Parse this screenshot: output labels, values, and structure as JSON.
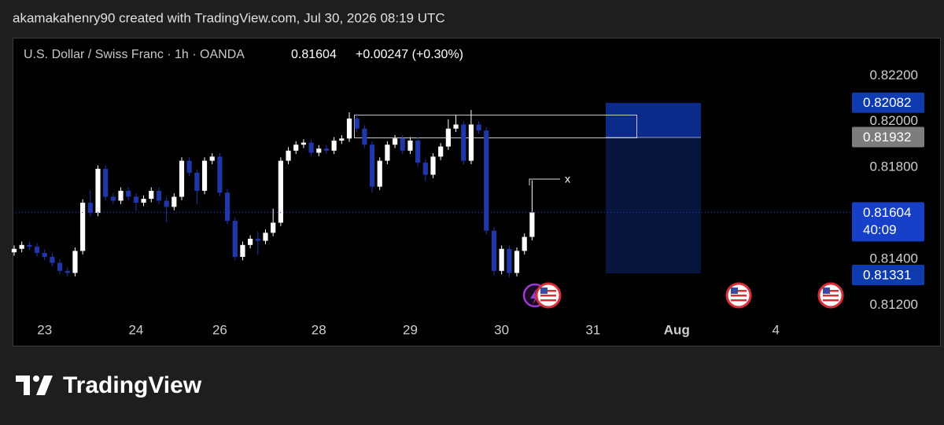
{
  "header": {
    "attribution": "akamakahenry90 created with TradingView.com, Jul 30, 2026 08:19 UTC"
  },
  "footer": {
    "brand": "TradingView"
  },
  "chart_data": {
    "type": "candlestick",
    "title": "U.S. Dollar / Swiss Franc · 1h · OANDA",
    "last_price": 0.81604,
    "change_label": "+0.00247 (+0.30%)",
    "marker_label": "x",
    "up_color": "#ffffff",
    "down_color": "#2137a8",
    "xlim": [
      0,
      110
    ],
    "xticks": [
      {
        "value": 4,
        "label": "23"
      },
      {
        "value": 16,
        "label": "24"
      },
      {
        "value": 27,
        "label": "26"
      },
      {
        "value": 40,
        "label": "28"
      },
      {
        "value": 52,
        "label": "29"
      },
      {
        "value": 64,
        "label": "30"
      },
      {
        "value": 76,
        "label": "31"
      },
      {
        "value": 87,
        "label": "Aug"
      },
      {
        "value": 100,
        "label": "4"
      }
    ],
    "ylim": [
      0.8116,
      0.8229
    ],
    "yticks": [
      {
        "value": 0.812,
        "label": "0.81200"
      },
      {
        "value": 0.814,
        "label": "0.81400"
      },
      {
        "value": 0.818,
        "label": "0.81800"
      },
      {
        "value": 0.82,
        "label": "0.82000"
      },
      {
        "value": 0.822,
        "label": "0.82200"
      }
    ],
    "price_labels": [
      {
        "value": 0.82082,
        "label": "0.82082",
        "color": "#0f3bb0"
      },
      {
        "value": 0.81932,
        "label": "0.81932",
        "color": "#7d7d7d"
      },
      {
        "value": 0.81604,
        "label": "0.81604",
        "sublabel": "40:09",
        "color": "#1640c8"
      },
      {
        "value": 0.81331,
        "label": "0.81331",
        "color": "#0f3bb0"
      }
    ],
    "candles": [
      [
        0.8143,
        0.8146,
        0.81415,
        0.81445
      ],
      [
        0.81445,
        0.81477,
        0.8143,
        0.81462
      ],
      [
        0.81462,
        0.81477,
        0.81439,
        0.81454
      ],
      [
        0.81454,
        0.81469,
        0.81412,
        0.81427
      ],
      [
        0.81427,
        0.81442,
        0.81395,
        0.8141
      ],
      [
        0.8141,
        0.81425,
        0.81369,
        0.81384
      ],
      [
        0.81384,
        0.81399,
        0.81334,
        0.81349
      ],
      [
        0.81349,
        0.81364,
        0.81325,
        0.8134
      ],
      [
        0.8134,
        0.81451,
        0.81325,
        0.81436
      ],
      [
        0.81436,
        0.81661,
        0.81421,
        0.81646
      ],
      [
        0.81646,
        0.817,
        0.81587,
        0.81602
      ],
      [
        0.81602,
        0.81809,
        0.81587,
        0.81794
      ],
      [
        0.81794,
        0.81809,
        0.81657,
        0.81672
      ],
      [
        0.81672,
        0.81687,
        0.8164,
        0.81655
      ],
      [
        0.81655,
        0.81713,
        0.8164,
        0.81698
      ],
      [
        0.81698,
        0.81713,
        0.81657,
        0.81672
      ],
      [
        0.81672,
        0.81687,
        0.8161,
        0.81646
      ],
      [
        0.81646,
        0.81678,
        0.81631,
        0.81663
      ],
      [
        0.81663,
        0.81713,
        0.81648,
        0.81698
      ],
      [
        0.81698,
        0.81713,
        0.8164,
        0.81655
      ],
      [
        0.81655,
        0.8167,
        0.8156,
        0.81628
      ],
      [
        0.81628,
        0.81687,
        0.81613,
        0.81672
      ],
      [
        0.81672,
        0.81844,
        0.81657,
        0.81829
      ],
      [
        0.81829,
        0.81844,
        0.81762,
        0.81777
      ],
      [
        0.81777,
        0.81792,
        0.8164,
        0.81698
      ],
      [
        0.81698,
        0.81844,
        0.81683,
        0.81829
      ],
      [
        0.81829,
        0.81862,
        0.81814,
        0.81847
      ],
      [
        0.81847,
        0.81862,
        0.81675,
        0.8169
      ],
      [
        0.8169,
        0.81705,
        0.81552,
        0.81567
      ],
      [
        0.81567,
        0.81582,
        0.81395,
        0.8141
      ],
      [
        0.8141,
        0.81477,
        0.81395,
        0.81462
      ],
      [
        0.81462,
        0.81504,
        0.81447,
        0.81489
      ],
      [
        0.81489,
        0.8152,
        0.8142,
        0.8148
      ],
      [
        0.8148,
        0.8153,
        0.81465,
        0.81515
      ],
      [
        0.81515,
        0.8162,
        0.815,
        0.81559
      ],
      [
        0.81559,
        0.81844,
        0.81544,
        0.81829
      ],
      [
        0.81829,
        0.81888,
        0.81814,
        0.81873
      ],
      [
        0.81873,
        0.81914,
        0.81858,
        0.81899
      ],
      [
        0.81899,
        0.81923,
        0.81884,
        0.81908
      ],
      [
        0.81908,
        0.81923,
        0.81849,
        0.81864
      ],
      [
        0.81864,
        0.81897,
        0.81849,
        0.81882
      ],
      [
        0.81882,
        0.81897,
        0.81858,
        0.81873
      ],
      [
        0.81873,
        0.81932,
        0.81858,
        0.81917
      ],
      [
        0.81917,
        0.81941,
        0.81902,
        0.81926
      ],
      [
        0.81926,
        0.8204,
        0.81911,
        0.82013
      ],
      [
        0.82013,
        0.82035,
        0.81954,
        0.81969
      ],
      [
        0.81969,
        0.81984,
        0.81884,
        0.81899
      ],
      [
        0.81899,
        0.81914,
        0.8169,
        0.81716
      ],
      [
        0.81716,
        0.81844,
        0.81701,
        0.81829
      ],
      [
        0.81829,
        0.81914,
        0.81814,
        0.81899
      ],
      [
        0.81899,
        0.81941,
        0.81884,
        0.81926
      ],
      [
        0.81926,
        0.81941,
        0.81858,
        0.81873
      ],
      [
        0.81873,
        0.81932,
        0.81858,
        0.81917
      ],
      [
        0.81917,
        0.81932,
        0.81806,
        0.81821
      ],
      [
        0.81821,
        0.81836,
        0.8174,
        0.81768
      ],
      [
        0.81768,
        0.81862,
        0.81753,
        0.81847
      ],
      [
        0.81847,
        0.81906,
        0.81832,
        0.81891
      ],
      [
        0.81891,
        0.8201,
        0.81876,
        0.81969
      ],
      [
        0.81969,
        0.8203,
        0.81954,
        0.81987
      ],
      [
        0.81987,
        0.82002,
        0.81814,
        0.81829
      ],
      [
        0.81829,
        0.8205,
        0.81814,
        0.81987
      ],
      [
        0.81987,
        0.82002,
        0.81946,
        0.81961
      ],
      [
        0.81961,
        0.81976,
        0.81509,
        0.81524
      ],
      [
        0.81524,
        0.81539,
        0.8133,
        0.81349
      ],
      [
        0.81349,
        0.8146,
        0.81334,
        0.81445
      ],
      [
        0.81445,
        0.8146,
        0.8132,
        0.8134
      ],
      [
        0.8134,
        0.81451,
        0.81325,
        0.81436
      ],
      [
        0.81436,
        0.81512,
        0.81421,
        0.81497
      ],
      [
        0.81497,
        0.81744,
        0.81482,
        0.81604
      ]
    ]
  }
}
